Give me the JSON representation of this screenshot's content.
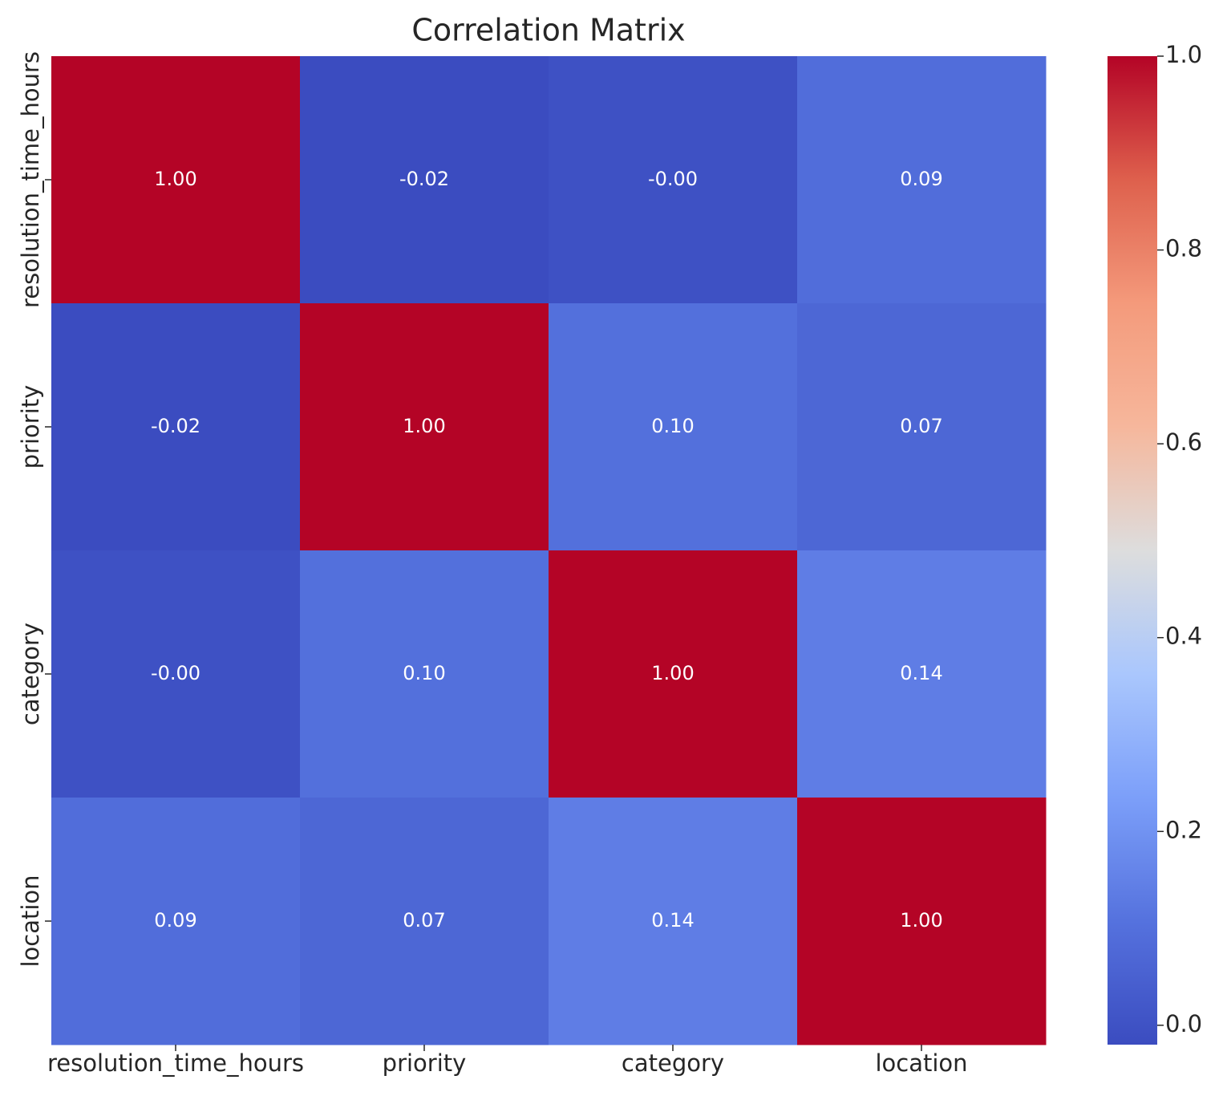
{
  "chart_data": {
    "type": "heatmap",
    "title": "Correlation Matrix",
    "x_categories": [
      "resolution_time_hours",
      "priority",
      "category",
      "location"
    ],
    "y_categories": [
      "resolution_time_hours",
      "priority",
      "category",
      "location"
    ],
    "values": [
      [
        1,
        -0.02,
        -0.004,
        0.09
      ],
      [
        -0.02,
        1,
        0.1,
        0.07
      ],
      [
        -0.004,
        0.1,
        1,
        0.14
      ],
      [
        0.09,
        0.07,
        0.14,
        1
      ]
    ],
    "value_labels": [
      [
        "1.00",
        "-0.02",
        "-0.00",
        "0.09"
      ],
      [
        "-0.02",
        "1.00",
        "0.10",
        "0.07"
      ],
      [
        "-0.00",
        "0.10",
        "1.00",
        "0.14"
      ],
      [
        "0.09",
        "0.07",
        "0.14",
        "1.00"
      ]
    ],
    "colormap": "coolwarm",
    "clim": [
      -0.02,
      1
    ],
    "cticks": [
      {
        "value": 0,
        "label": "0.0"
      },
      0.2,
      0.4,
      0.6,
      0.8,
      {
        "value": 1,
        "label": "1.0"
      }
    ]
  }
}
